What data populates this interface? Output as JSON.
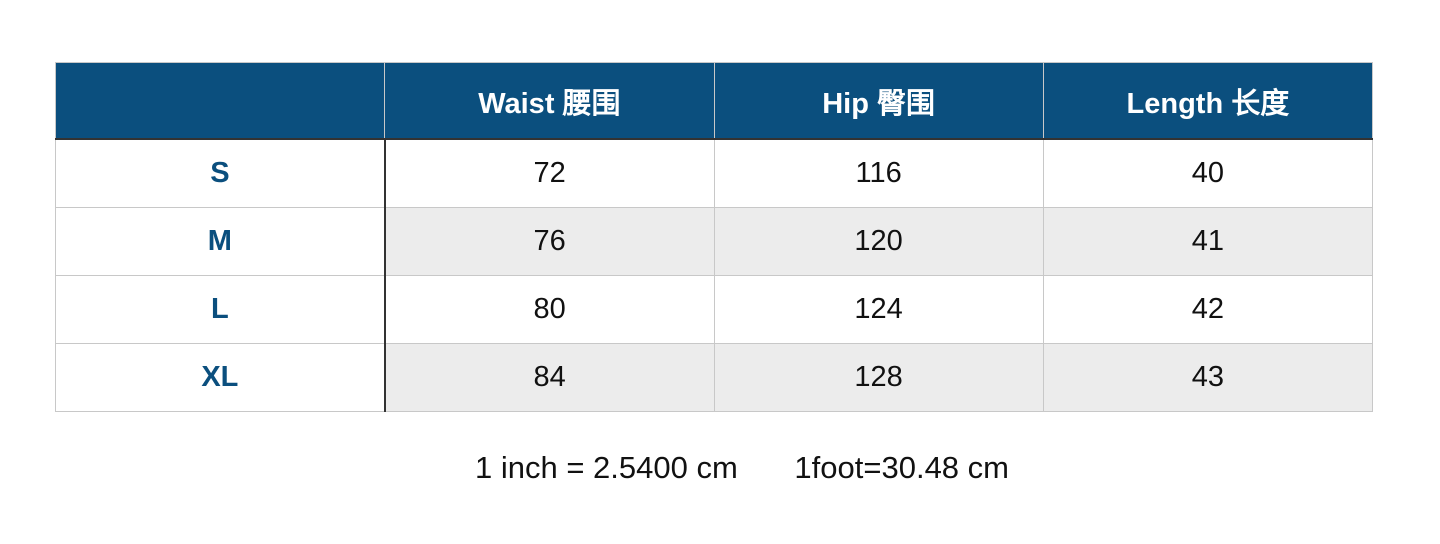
{
  "table": {
    "headers": [
      "",
      "Waist 腰围",
      "Hip 臀围",
      "Length 长度"
    ],
    "rows": [
      {
        "size": "S",
        "waist": "72",
        "hip": "116",
        "length": "40"
      },
      {
        "size": "M",
        "waist": "76",
        "hip": "120",
        "length": "41"
      },
      {
        "size": "L",
        "waist": "80",
        "hip": "124",
        "length": "42"
      },
      {
        "size": "XL",
        "waist": "84",
        "hip": "128",
        "length": "43"
      }
    ]
  },
  "footer": {
    "inch_conversion": "1 inch = 2.5400 cm",
    "foot_conversion": "1foot=30.48 cm"
  },
  "colors": {
    "header_bg": "#0b4f7e",
    "size_text": "#0b4f7e",
    "alt_row": "#ececec"
  }
}
